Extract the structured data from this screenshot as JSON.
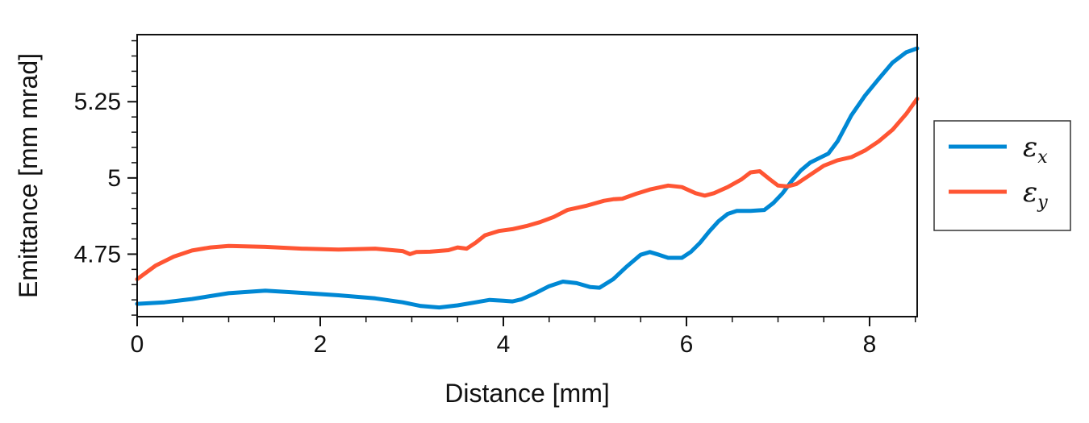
{
  "chart_data": {
    "type": "line",
    "title": "",
    "xlabel": "Distance [mm]",
    "ylabel": "Emittance [mm mrad]",
    "xlim": [
      0,
      8.52
    ],
    "ylim": [
      4.545,
      5.47
    ],
    "x_ticks": [
      0,
      2,
      4,
      6,
      8
    ],
    "x_tick_labels": [
      "0",
      "2",
      "4",
      "6",
      "8"
    ],
    "y_ticks": [
      4.75,
      5.0,
      5.25
    ],
    "y_tick_labels": [
      "4.75",
      "5",
      "5.25"
    ],
    "grid": false,
    "legend_position": "right-outside",
    "series": [
      {
        "name": "εx",
        "symbol": "ε",
        "subscript": "x",
        "color": "#0088d4",
        "x": [
          0,
          0.3,
          0.6,
          1.0,
          1.4,
          1.8,
          2.2,
          2.6,
          2.9,
          3.1,
          3.3,
          3.5,
          3.7,
          3.85,
          4.0,
          4.1,
          4.2,
          4.35,
          4.5,
          4.65,
          4.8,
          4.95,
          5.05,
          5.2,
          5.35,
          5.5,
          5.6,
          5.7,
          5.8,
          5.95,
          6.05,
          6.15,
          6.25,
          6.35,
          6.45,
          6.55,
          6.7,
          6.85,
          6.95,
          7.05,
          7.15,
          7.25,
          7.35,
          7.45,
          7.55,
          7.65,
          7.8,
          7.95,
          8.1,
          8.25,
          8.4,
          8.52
        ],
        "y": [
          4.587,
          4.592,
          4.603,
          4.622,
          4.63,
          4.623,
          4.615,
          4.605,
          4.592,
          4.58,
          4.575,
          4.582,
          4.592,
          4.6,
          4.597,
          4.595,
          4.602,
          4.622,
          4.645,
          4.66,
          4.655,
          4.642,
          4.64,
          4.668,
          4.71,
          4.748,
          4.757,
          4.748,
          4.738,
          4.738,
          4.758,
          4.788,
          4.825,
          4.858,
          4.882,
          4.892,
          4.892,
          4.895,
          4.918,
          4.95,
          4.99,
          5.025,
          5.05,
          5.065,
          5.08,
          5.12,
          5.205,
          5.27,
          5.325,
          5.378,
          5.412,
          5.425
        ]
      },
      {
        "name": "εy",
        "symbol": "ε",
        "subscript": "y",
        "color": "#ff5533",
        "x": [
          0,
          0.2,
          0.4,
          0.6,
          0.8,
          1.0,
          1.4,
          1.8,
          2.2,
          2.6,
          2.9,
          2.98,
          3.05,
          3.2,
          3.4,
          3.5,
          3.6,
          3.7,
          3.8,
          3.95,
          4.1,
          4.25,
          4.4,
          4.55,
          4.7,
          4.9,
          5.1,
          5.2,
          5.3,
          5.45,
          5.6,
          5.8,
          5.95,
          6.1,
          6.2,
          6.3,
          6.45,
          6.6,
          6.7,
          6.8,
          6.9,
          7.0,
          7.1,
          7.2,
          7.35,
          7.5,
          7.65,
          7.8,
          7.95,
          8.1,
          8.25,
          8.4,
          8.52
        ],
        "y": [
          4.668,
          4.712,
          4.742,
          4.762,
          4.772,
          4.777,
          4.774,
          4.768,
          4.765,
          4.768,
          4.76,
          4.75,
          4.757,
          4.758,
          4.763,
          4.772,
          4.768,
          4.788,
          4.812,
          4.826,
          4.832,
          4.842,
          4.855,
          4.872,
          4.895,
          4.908,
          4.925,
          4.93,
          4.932,
          4.948,
          4.962,
          4.975,
          4.97,
          4.95,
          4.942,
          4.95,
          4.97,
          4.995,
          5.018,
          5.022,
          4.998,
          4.975,
          4.972,
          4.98,
          5.01,
          5.04,
          5.058,
          5.068,
          5.09,
          5.12,
          5.158,
          5.21,
          5.26
        ]
      }
    ]
  }
}
